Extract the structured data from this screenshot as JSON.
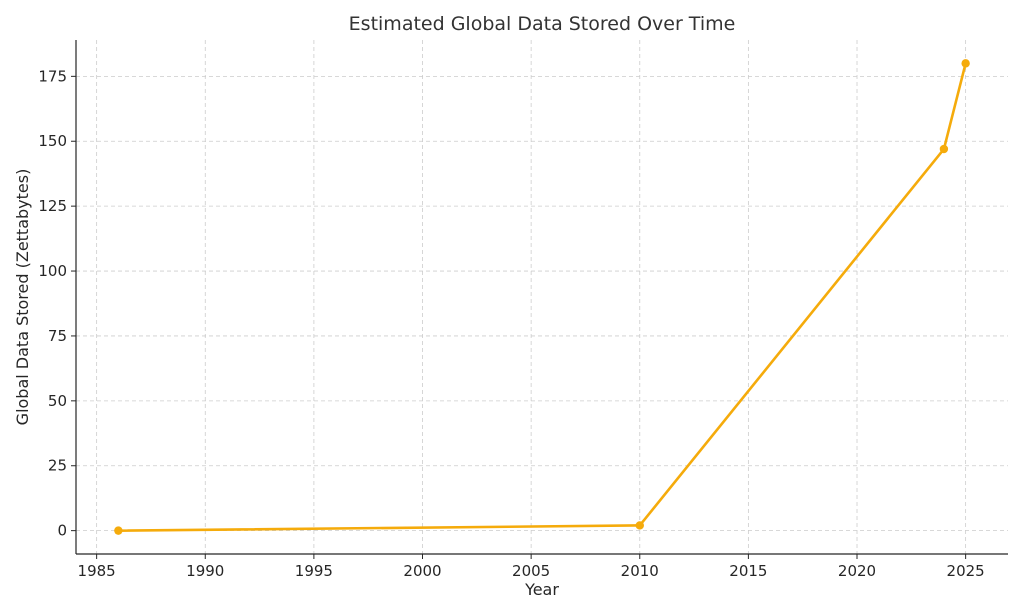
{
  "chart_data": {
    "type": "line",
    "title": "Estimated Global Data Stored Over Time",
    "xlabel": "Year",
    "ylabel": "Global Data Stored (Zettabytes)",
    "xlim": [
      1984.05,
      2026.95
    ],
    "ylim": [
      -9,
      189
    ],
    "xticks": [
      1985,
      1990,
      1995,
      2000,
      2005,
      2010,
      2015,
      2020,
      2025
    ],
    "yticks": [
      0,
      25,
      50,
      75,
      100,
      125,
      150,
      175
    ],
    "grid": true,
    "line_color": "#f5ab0b",
    "series": [
      {
        "x": [
          1986,
          2010,
          2024,
          2025
        ],
        "y": [
          0,
          2,
          147,
          180
        ]
      }
    ]
  }
}
